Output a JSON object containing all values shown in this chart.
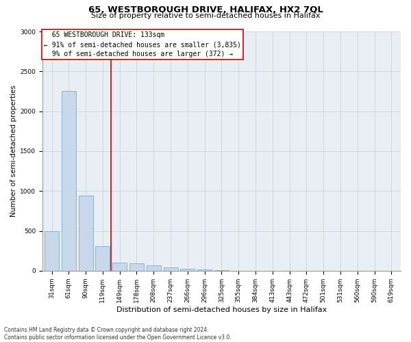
{
  "title": "65, WESTBOROUGH DRIVE, HALIFAX, HX2 7QL",
  "subtitle": "Size of property relative to semi-detached houses in Halifax",
  "xlabel": "Distribution of semi-detached houses by size in Halifax",
  "ylabel": "Number of semi-detached properties",
  "property_label": "65 WESTBOROUGH DRIVE: 133sqm",
  "pct_smaller": 91,
  "count_smaller": 3835,
  "pct_larger": 9,
  "count_larger": 372,
  "categories": [
    "31sqm",
    "61sqm",
    "90sqm",
    "119sqm",
    "149sqm",
    "178sqm",
    "208sqm",
    "237sqm",
    "266sqm",
    "296sqm",
    "325sqm",
    "355sqm",
    "384sqm",
    "413sqm",
    "443sqm",
    "472sqm",
    "501sqm",
    "531sqm",
    "560sqm",
    "590sqm",
    "619sqm"
  ],
  "values": [
    500,
    2250,
    940,
    310,
    105,
    95,
    65,
    45,
    25,
    15,
    5,
    0,
    0,
    0,
    0,
    0,
    0,
    0,
    0,
    0,
    0
  ],
  "bar_color": "#c8d8ea",
  "bar_edge_color": "#7aaace",
  "vline_color": "#cc0000",
  "vline_x_index": 3.5,
  "box_edge_color": "#cc0000",
  "grid_color": "#cccccc",
  "plot_bg_color": "#e8eef4",
  "ylim": [
    0,
    3000
  ],
  "yticks": [
    0,
    500,
    1000,
    1500,
    2000,
    2500,
    3000
  ],
  "footer_line1": "Contains HM Land Registry data © Crown copyright and database right 2024.",
  "footer_line2": "Contains public sector information licensed under the Open Government Licence v3.0.",
  "bg_color": "#ffffff",
  "fig_width": 6.0,
  "fig_height": 5.0,
  "title_fontsize": 9.5,
  "subtitle_fontsize": 8,
  "ylabel_fontsize": 7.5,
  "xlabel_fontsize": 8,
  "tick_fontsize": 6.5,
  "annotation_fontsize": 7,
  "footer_fontsize": 5.5
}
